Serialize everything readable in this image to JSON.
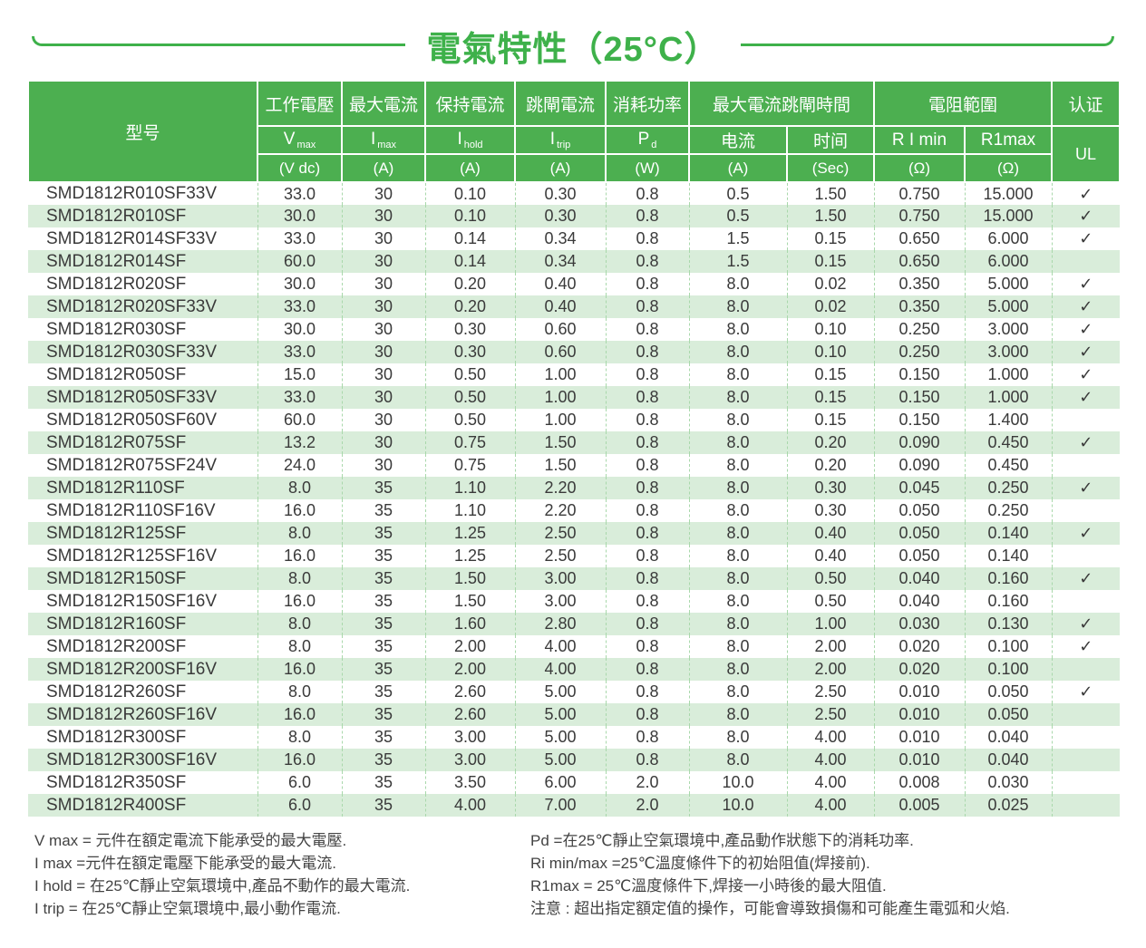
{
  "title": "電氣特性（25°C）",
  "colors": {
    "header_green": "#4caf50",
    "title_green": "#3eb14a",
    "row_alt_green": "#d9edda",
    "column_divider_green": "#a9d8ab",
    "text_dark": "#3a3a3a"
  },
  "table": {
    "model_header": "型号",
    "cert_group": "认证",
    "cert_body": "UL",
    "check_mark": "✓",
    "groups": [
      {
        "label": "工作電壓",
        "cols": [
          {
            "sym": "V",
            "sub": "max",
            "unit": "(V dc)"
          }
        ]
      },
      {
        "label": "最大電流",
        "cols": [
          {
            "sym": "I",
            "sub": "max",
            "unit": "(A)"
          }
        ]
      },
      {
        "label": "保持電流",
        "cols": [
          {
            "sym": "I",
            "sub": "hold",
            "unit": "(A)"
          }
        ]
      },
      {
        "label": "跳閘電流",
        "cols": [
          {
            "sym": "I",
            "sub": "trip",
            "unit": "(A)"
          }
        ]
      },
      {
        "label": "消耗功率",
        "cols": [
          {
            "sym": "P",
            "sub": "d",
            "unit": "(W)"
          }
        ]
      },
      {
        "label": "最大電流跳閘時間",
        "cols": [
          {
            "sym": "电流",
            "unit": "(A)"
          },
          {
            "sym": "时间",
            "unit": "(Sec)"
          }
        ]
      },
      {
        "label": "電阻範圍",
        "cols": [
          {
            "sym": "R I min",
            "unit": "(Ω)"
          },
          {
            "sym": "R1max",
            "unit": "(Ω)"
          }
        ]
      }
    ],
    "rows": [
      [
        "SMD1812R010SF33V",
        "33.0",
        "30",
        "0.10",
        "0.30",
        "0.8",
        "0.5",
        "1.50",
        "0.750",
        "15.000",
        "✓"
      ],
      [
        "SMD1812R010SF",
        "30.0",
        "30",
        "0.10",
        "0.30",
        "0.8",
        "0.5",
        "1.50",
        "0.750",
        "15.000",
        "✓"
      ],
      [
        "SMD1812R014SF33V",
        "33.0",
        "30",
        "0.14",
        "0.34",
        "0.8",
        "1.5",
        "0.15",
        "0.650",
        "6.000",
        "✓"
      ],
      [
        "SMD1812R014SF",
        "60.0",
        "30",
        "0.14",
        "0.34",
        "0.8",
        "1.5",
        "0.15",
        "0.650",
        "6.000",
        ""
      ],
      [
        "SMD1812R020SF",
        "30.0",
        "30",
        "0.20",
        "0.40",
        "0.8",
        "8.0",
        "0.02",
        "0.350",
        "5.000",
        "✓"
      ],
      [
        "SMD1812R020SF33V",
        "33.0",
        "30",
        "0.20",
        "0.40",
        "0.8",
        "8.0",
        "0.02",
        "0.350",
        "5.000",
        "✓"
      ],
      [
        "SMD1812R030SF",
        "30.0",
        "30",
        "0.30",
        "0.60",
        "0.8",
        "8.0",
        "0.10",
        "0.250",
        "3.000",
        "✓"
      ],
      [
        "SMD1812R030SF33V",
        "33.0",
        "30",
        "0.30",
        "0.60",
        "0.8",
        "8.0",
        "0.10",
        "0.250",
        "3.000",
        "✓"
      ],
      [
        "SMD1812R050SF",
        "15.0",
        "30",
        "0.50",
        "1.00",
        "0.8",
        "8.0",
        "0.15",
        "0.150",
        "1.000",
        "✓"
      ],
      [
        "SMD1812R050SF33V",
        "33.0",
        "30",
        "0.50",
        "1.00",
        "0.8",
        "8.0",
        "0.15",
        "0.150",
        "1.000",
        "✓"
      ],
      [
        "SMD1812R050SF60V",
        "60.0",
        "30",
        "0.50",
        "1.00",
        "0.8",
        "8.0",
        "0.15",
        "0.150",
        "1.400",
        ""
      ],
      [
        "SMD1812R075SF",
        "13.2",
        "30",
        "0.75",
        "1.50",
        "0.8",
        "8.0",
        "0.20",
        "0.090",
        "0.450",
        "✓"
      ],
      [
        "SMD1812R075SF24V",
        "24.0",
        "30",
        "0.75",
        "1.50",
        "0.8",
        "8.0",
        "0.20",
        "0.090",
        "0.450",
        ""
      ],
      [
        "SMD1812R110SF",
        "8.0",
        "35",
        "1.10",
        "2.20",
        "0.8",
        "8.0",
        "0.30",
        "0.045",
        "0.250",
        "✓"
      ],
      [
        "SMD1812R110SF16V",
        "16.0",
        "35",
        "1.10",
        "2.20",
        "0.8",
        "8.0",
        "0.30",
        "0.050",
        "0.250",
        ""
      ],
      [
        "SMD1812R125SF",
        "8.0",
        "35",
        "1.25",
        "2.50",
        "0.8",
        "8.0",
        "0.40",
        "0.050",
        "0.140",
        "✓"
      ],
      [
        "SMD1812R125SF16V",
        "16.0",
        "35",
        "1.25",
        "2.50",
        "0.8",
        "8.0",
        "0.40",
        "0.050",
        "0.140",
        ""
      ],
      [
        "SMD1812R150SF",
        "8.0",
        "35",
        "1.50",
        "3.00",
        "0.8",
        "8.0",
        "0.50",
        "0.040",
        "0.160",
        "✓"
      ],
      [
        "SMD1812R150SF16V",
        "16.0",
        "35",
        "1.50",
        "3.00",
        "0.8",
        "8.0",
        "0.50",
        "0.040",
        "0.160",
        ""
      ],
      [
        "SMD1812R160SF",
        "8.0",
        "35",
        "1.60",
        "2.80",
        "0.8",
        "8.0",
        "1.00",
        "0.030",
        "0.130",
        "✓"
      ],
      [
        "SMD1812R200SF",
        "8.0",
        "35",
        "2.00",
        "4.00",
        "0.8",
        "8.0",
        "2.00",
        "0.020",
        "0.100",
        "✓"
      ],
      [
        "SMD1812R200SF16V",
        "16.0",
        "35",
        "2.00",
        "4.00",
        "0.8",
        "8.0",
        "2.00",
        "0.020",
        "0.100",
        ""
      ],
      [
        "SMD1812R260SF",
        "8.0",
        "35",
        "2.60",
        "5.00",
        "0.8",
        "8.0",
        "2.50",
        "0.010",
        "0.050",
        "✓"
      ],
      [
        "SMD1812R260SF16V",
        "16.0",
        "35",
        "2.60",
        "5.00",
        "0.8",
        "8.0",
        "2.50",
        "0.010",
        "0.050",
        ""
      ],
      [
        "SMD1812R300SF",
        "8.0",
        "35",
        "3.00",
        "5.00",
        "0.8",
        "8.0",
        "4.00",
        "0.010",
        "0.040",
        ""
      ],
      [
        "SMD1812R300SF16V",
        "16.0",
        "35",
        "3.00",
        "5.00",
        "0.8",
        "8.0",
        "4.00",
        "0.010",
        "0.040",
        ""
      ],
      [
        "SMD1812R350SF",
        "6.0",
        "35",
        "3.50",
        "6.00",
        "2.0",
        "10.0",
        "4.00",
        "0.008",
        "0.030",
        ""
      ],
      [
        "SMD1812R400SF",
        "6.0",
        "35",
        "4.00",
        "7.00",
        "2.0",
        "10.0",
        "4.00",
        "0.005",
        "0.025",
        ""
      ]
    ]
  },
  "notes": {
    "left": [
      "V max = 元件在額定電流下能承受的最大電壓.",
      "I max =元件在額定電壓下能承受的最大電流.",
      "I hold = 在25℃靜止空氣環境中,產品不動作的最大電流.",
      "I trip = 在25℃靜止空氣環境中,最小動作電流."
    ],
    "right": [
      "Pd =在25℃靜止空氣環境中,產品動作狀態下的消耗功率.",
      "Ri min/max  =25℃溫度條件下的初始阻值(焊接前).",
      "R1max  = 25℃溫度條件下,焊接一小時後的最大阻值.",
      "注意 : 超出指定額定值的操作，可能會導致損傷和可能產生電弧和火焰."
    ]
  }
}
